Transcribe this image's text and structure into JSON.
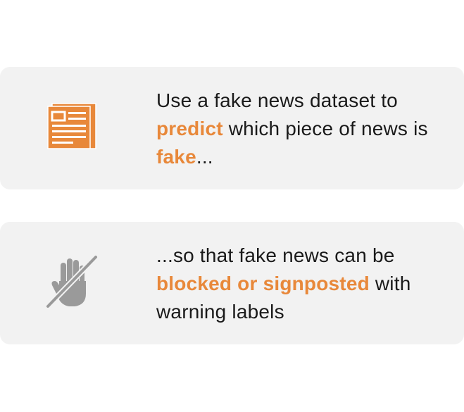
{
  "colors": {
    "accent": "#e8883a",
    "icon_gray": "#999999",
    "card_bg": "#f2f2f2",
    "text": "#1a1a1a"
  },
  "cards": [
    {
      "icon": "newspaper-icon",
      "text_before": "Use a fake news dataset to",
      "highlight_1": "predict",
      "text_middle": " which piece of news is",
      "highlight_2": "fake",
      "text_after": "..."
    },
    {
      "icon": "no-hand-icon",
      "text_before": "...so that fake news can be",
      "highlight_1": "blocked or signposted",
      "text_after": " with warning labels"
    }
  ]
}
